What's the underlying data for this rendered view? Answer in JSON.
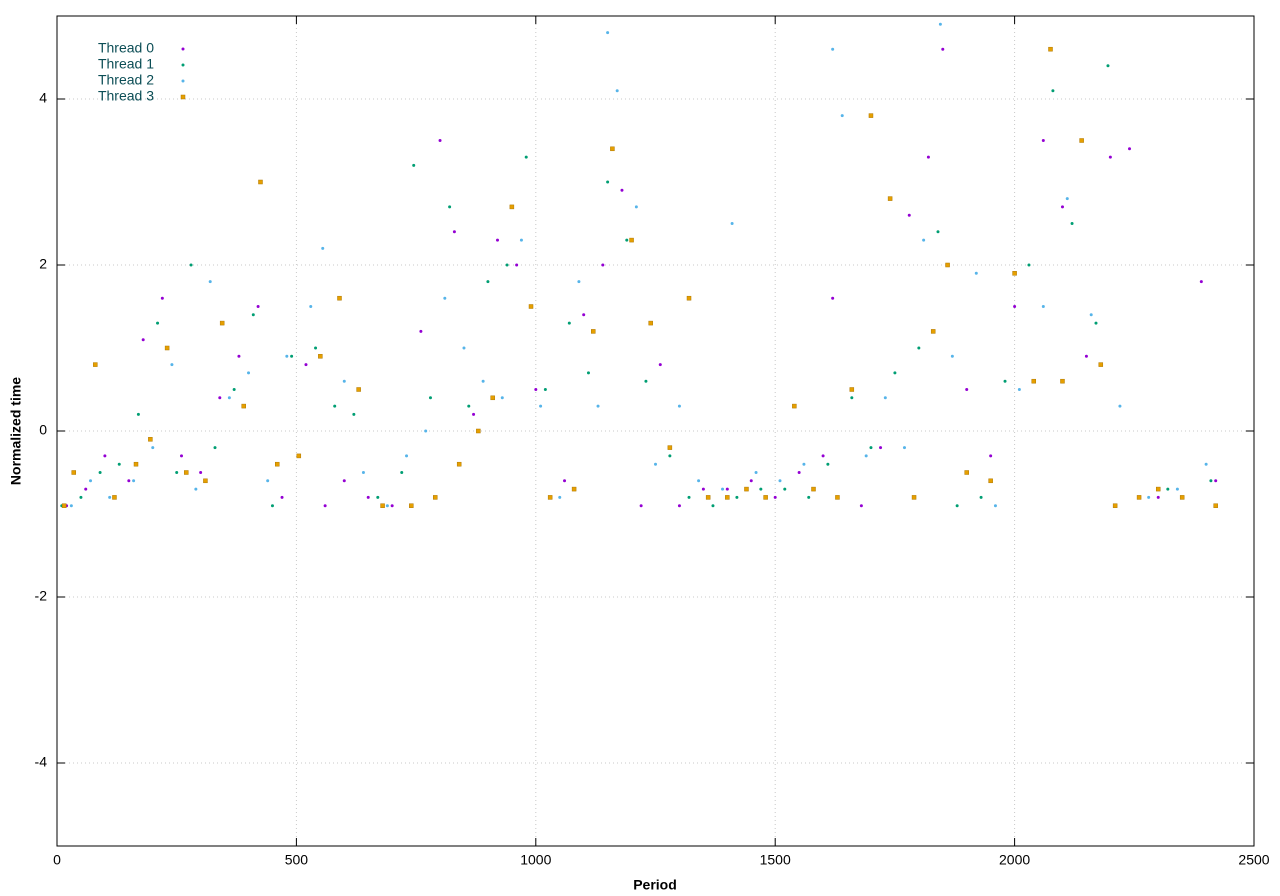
{
  "chart_data": {
    "type": "scatter",
    "xlabel": "Period",
    "ylabel": "Normalized time",
    "xlim": [
      0,
      2500
    ],
    "ylim": [
      -5,
      5
    ],
    "xticks": [
      0,
      500,
      1000,
      1500,
      2000,
      2500
    ],
    "yticks": [
      -4,
      -2,
      0,
      2,
      4
    ],
    "grid": true,
    "legend": "top-left",
    "series": [
      {
        "name": "Thread 0",
        "color": "#9400d3",
        "marker": "dot",
        "x": [
          20,
          60,
          100,
          150,
          180,
          220,
          260,
          300,
          340,
          380,
          420,
          470,
          520,
          560,
          600,
          650,
          700,
          760,
          800,
          830,
          870,
          920,
          960,
          1000,
          1060,
          1100,
          1140,
          1180,
          1220,
          1260,
          1300,
          1350,
          1400,
          1450,
          1500,
          1550,
          1600,
          1620,
          1680,
          1720,
          1780,
          1820,
          1850,
          1900,
          1950,
          2000,
          2060,
          2100,
          2150,
          2200,
          2240,
          2300,
          2350,
          2390,
          2420
        ],
        "values": [
          -0.9,
          -0.7,
          -0.3,
          -0.6,
          1.1,
          1.6,
          -0.3,
          -0.5,
          0.4,
          0.9,
          1.5,
          -0.8,
          0.8,
          -0.9,
          -0.6,
          -0.8,
          -0.9,
          1.2,
          3.5,
          2.4,
          0.2,
          2.3,
          2.0,
          0.5,
          -0.6,
          1.4,
          2.0,
          2.9,
          -0.9,
          0.8,
          -0.9,
          -0.7,
          -0.7,
          -0.6,
          -0.8,
          -0.5,
          -0.3,
          1.6,
          -0.9,
          -0.2,
          2.6,
          3.3,
          4.6,
          0.5,
          -0.3,
          1.5,
          3.5,
          2.7,
          0.9,
          3.3,
          3.4,
          -0.8,
          -0.8,
          1.8,
          -0.6
        ]
      },
      {
        "name": "Thread 1",
        "color": "#009e73",
        "marker": "dot",
        "x": [
          10,
          50,
          90,
          130,
          170,
          210,
          250,
          280,
          330,
          370,
          410,
          450,
          490,
          540,
          580,
          620,
          670,
          720,
          745,
          780,
          820,
          860,
          900,
          940,
          980,
          1020,
          1070,
          1110,
          1150,
          1190,
          1230,
          1280,
          1320,
          1370,
          1420,
          1470,
          1520,
          1570,
          1610,
          1660,
          1700,
          1750,
          1800,
          1840,
          1880,
          1930,
          1980,
          2030,
          2080,
          2120,
          2170,
          2195,
          2260,
          2320,
          2410
        ],
        "values": [
          -0.9,
          -0.8,
          -0.5,
          -0.4,
          0.2,
          1.3,
          -0.5,
          2.0,
          -0.2,
          0.5,
          1.4,
          -0.9,
          0.9,
          1.0,
          0.3,
          0.2,
          -0.8,
          -0.5,
          3.2,
          0.4,
          2.7,
          0.3,
          1.8,
          2.0,
          3.3,
          0.5,
          1.3,
          0.7,
          3.0,
          2.3,
          0.6,
          -0.3,
          -0.8,
          -0.9,
          -0.8,
          -0.7,
          -0.7,
          -0.8,
          -0.4,
          0.4,
          -0.2,
          0.7,
          1.0,
          2.4,
          -0.9,
          -0.8,
          0.6,
          2.0,
          4.1,
          2.5,
          1.3,
          4.4,
          -0.8,
          -0.7,
          -0.6
        ]
      },
      {
        "name": "Thread 2",
        "color": "#56b4e9",
        "marker": "dot",
        "x": [
          30,
          70,
          110,
          160,
          200,
          240,
          290,
          320,
          360,
          400,
          440,
          480,
          530,
          555,
          600,
          640,
          690,
          730,
          770,
          810,
          850,
          890,
          930,
          970,
          1010,
          1050,
          1090,
          1130,
          1150,
          1170,
          1210,
          1250,
          1300,
          1340,
          1390,
          1410,
          1460,
          1510,
          1560,
          1620,
          1640,
          1690,
          1730,
          1770,
          1810,
          1845,
          1870,
          1920,
          1960,
          2010,
          2060,
          2110,
          2160,
          2220,
          2280,
          2340,
          2400
        ],
        "values": [
          -0.9,
          -0.6,
          -0.8,
          -0.6,
          -0.2,
          0.8,
          -0.7,
          1.8,
          0.4,
          0.7,
          -0.6,
          0.9,
          1.5,
          2.2,
          0.6,
          -0.5,
          -0.9,
          -0.3,
          0.0,
          1.6,
          1.0,
          0.6,
          0.4,
          2.3,
          0.3,
          -0.8,
          1.8,
          0.3,
          4.8,
          4.1,
          2.7,
          -0.4,
          0.3,
          -0.6,
          -0.7,
          2.5,
          -0.5,
          -0.6,
          -0.4,
          4.6,
          3.8,
          -0.3,
          0.4,
          -0.2,
          2.3,
          4.9,
          0.9,
          1.9,
          -0.9,
          0.5,
          1.5,
          2.8,
          1.4,
          0.3,
          -0.8,
          -0.7,
          -0.4
        ]
      },
      {
        "name": "Thread 3",
        "color": "#e69f00",
        "marker": "square",
        "x": [
          15,
          35,
          80,
          120,
          165,
          195,
          230,
          270,
          310,
          345,
          390,
          425,
          460,
          505,
          550,
          590,
          630,
          680,
          740,
          790,
          840,
          880,
          910,
          950,
          990,
          1030,
          1080,
          1120,
          1160,
          1200,
          1240,
          1280,
          1320,
          1360,
          1400,
          1440,
          1480,
          1540,
          1580,
          1630,
          1660,
          1700,
          1740,
          1790,
          1830,
          1860,
          1900,
          1950,
          2000,
          2040,
          2075,
          2100,
          2140,
          2180,
          2210,
          2260,
          2300,
          2350,
          2420
        ],
        "values": [
          -0.9,
          -0.5,
          0.8,
          -0.8,
          -0.4,
          -0.1,
          1.0,
          -0.5,
          -0.6,
          1.3,
          0.3,
          3.0,
          -0.4,
          -0.3,
          0.9,
          1.6,
          0.5,
          -0.9,
          -0.9,
          -0.8,
          -0.4,
          0.0,
          0.4,
          2.7,
          1.5,
          -0.8,
          -0.7,
          1.2,
          3.4,
          2.3,
          1.3,
          -0.2,
          1.6,
          -0.8,
          -0.8,
          -0.7,
          -0.8,
          0.3,
          -0.7,
          -0.8,
          0.5,
          3.8,
          2.8,
          -0.8,
          1.2,
          2.0,
          -0.5,
          -0.6,
          1.9,
          0.6,
          4.6,
          0.6,
          3.5,
          0.8,
          -0.9,
          -0.8,
          -0.7,
          -0.8,
          -0.9
        ]
      }
    ]
  }
}
